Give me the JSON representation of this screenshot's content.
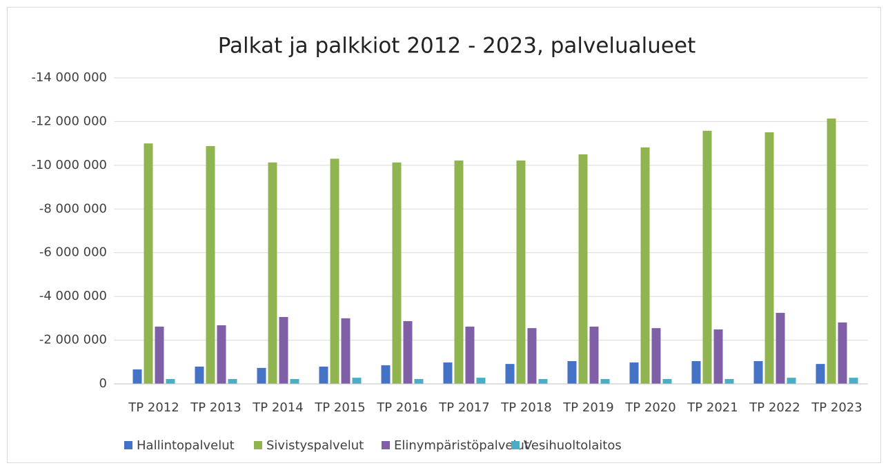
{
  "chart_data": {
    "type": "bar",
    "title": "Palkat ja palkkiot 2012  - 2023, palvelualueet",
    "categories": [
      "TP 2012",
      "TP 2013",
      "TP 2014",
      "TP 2015",
      "TP 2016",
      "TP 2017",
      "TP 2018",
      "TP 2019",
      "TP 2020",
      "TP 2021",
      "TP 2022",
      "TP 2023"
    ],
    "series": [
      {
        "name": "Hallintopalvelut",
        "color": "#4472c4",
        "values": [
          -660000,
          -790000,
          -730000,
          -790000,
          -850000,
          -980000,
          -910000,
          -1040000,
          -980000,
          -1040000,
          -1040000,
          -910000
        ]
      },
      {
        "name": "Sivistyspalvelut",
        "color": "#8fb450",
        "values": [
          -11000000,
          -10880000,
          -10130000,
          -10300000,
          -10130000,
          -10220000,
          -10220000,
          -10500000,
          -10820000,
          -11580000,
          -11510000,
          -12140000
        ]
      },
      {
        "name": "Elinympäristöpalvelut",
        "color": "#7f5fa5",
        "values": [
          -2620000,
          -2680000,
          -3060000,
          -3000000,
          -2870000,
          -2620000,
          -2550000,
          -2620000,
          -2550000,
          -2490000,
          -3250000,
          -2810000
        ]
      },
      {
        "name": "Vesihuoltolaitos",
        "color": "#4bacc6",
        "values": [
          -220000,
          -220000,
          -220000,
          -280000,
          -220000,
          -280000,
          -220000,
          -220000,
          -220000,
          -220000,
          -280000,
          -280000
        ]
      }
    ],
    "ylim": [
      0,
      -14000000
    ],
    "yticks": [
      0,
      {
        "value": -2000000,
        "label": "-2 000 000"
      },
      {
        "value": -4000000,
        "label": "-4 000 000"
      },
      {
        "value": -6000000,
        "label": "-6 000 000"
      },
      {
        "value": -8000000,
        "label": "-8 000 000"
      },
      {
        "value": -10000000,
        "label": "-10 000 000"
      },
      {
        "value": -12000000,
        "label": "-12 000 000"
      },
      {
        "value": -14000000,
        "label": "-14 000 000"
      }
    ],
    "grid": true,
    "legend": "bottom"
  }
}
